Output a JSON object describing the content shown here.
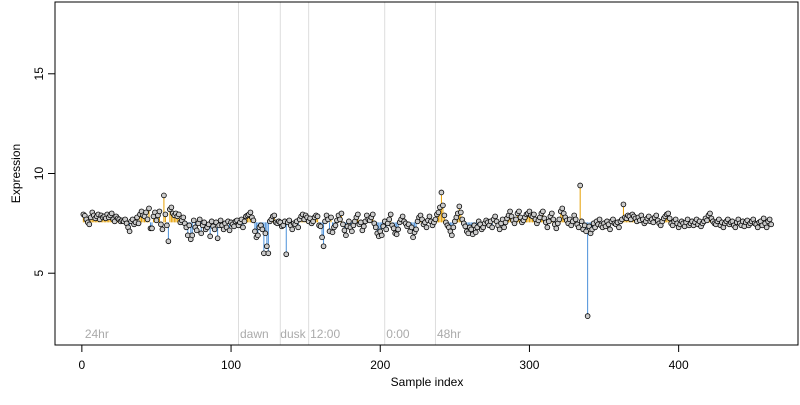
{
  "chart_data": {
    "type": "scatter",
    "title": "",
    "xlabel": "Sample index",
    "ylabel": "Expression",
    "xlim": [
      -18,
      480
    ],
    "ylim": [
      1.4,
      18.6
    ],
    "x_ticks": [
      0,
      100,
      200,
      300,
      400
    ],
    "y_ticks": [
      5,
      10,
      15
    ],
    "baseline": 7.55,
    "colors": {
      "above": "#E69F00",
      "below": "#4A90D9",
      "point_fill": "#cccccc",
      "point_edge": "#000000",
      "separator": "#dddddd",
      "phase_label": "#aaaaaa"
    },
    "phases": [
      {
        "label": "24hr",
        "x": 2,
        "boundary": null
      },
      {
        "label": "dawn",
        "x": 106,
        "boundary": 105
      },
      {
        "label": "dusk",
        "x": 133,
        "boundary": 133
      },
      {
        "label": "12:00",
        "x": 153,
        "boundary": 152
      },
      {
        "label": "0:00",
        "x": 204,
        "boundary": 203
      },
      {
        "label": "48hr",
        "x": 238,
        "boundary": 237
      }
    ],
    "series": [
      {
        "values": [
          7.95,
          7.88,
          7.7,
          7.55,
          7.45,
          7.8,
          8.05,
          7.9,
          7.75,
          7.85,
          7.95,
          7.7,
          7.9,
          7.8,
          7.85,
          7.75,
          7.95,
          7.8,
          7.9,
          8.0,
          7.7,
          7.6,
          7.85,
          7.75,
          7.7,
          7.6,
          7.65,
          7.6,
          7.7,
          7.5,
          7.3,
          7.1,
          7.6,
          7.7,
          7.45,
          7.55,
          7.8,
          7.5,
          7.95,
          8.1,
          7.9,
          7.85,
          8.05,
          7.7,
          8.25,
          7.25,
          7.25,
          7.85,
          8.05,
          7.65,
          7.9,
          8.1,
          7.45,
          7.2,
          8.9,
          7.95,
          7.4,
          6.6,
          8.2,
          8.3,
          8.0,
          7.9,
          8.0,
          7.85,
          7.95,
          7.55,
          7.65,
          7.8,
          7.5,
          7.3,
          6.9,
          7.4,
          6.7,
          6.9,
          7.65,
          7.3,
          7.15,
          7.5,
          7.7,
          7.0,
          7.4,
          7.55,
          7.2,
          7.3,
          7.45,
          6.85,
          7.6,
          7.35,
          7.2,
          7.55,
          6.75,
          7.4,
          7.65,
          7.4,
          7.2,
          7.5,
          7.3,
          7.6,
          7.15,
          7.55,
          7.45,
          7.35,
          7.6,
          7.65,
          7.4,
          7.55,
          7.7,
          7.3,
          7.6,
          7.85,
          7.9,
          7.95,
          8.05,
          7.8,
          7.65,
          7.1,
          6.8,
          6.9,
          7.3,
          7.4,
          7.2,
          6.0,
          7.0,
          6.35,
          6.0,
          7.6,
          7.7,
          7.85,
          7.9,
          7.55,
          7.5,
          7.6,
          7.55,
          7.35,
          7.4,
          7.6,
          5.95,
          7.55,
          7.65,
          7.4,
          7.2,
          7.5,
          7.45,
          7.6,
          7.3,
          7.7,
          7.85,
          7.95,
          7.7,
          7.9,
          7.8,
          7.6,
          7.75,
          7.5,
          7.6,
          7.8,
          7.9,
          7.85,
          7.4,
          7.35,
          6.8,
          6.35,
          7.6,
          7.9,
          7.7,
          7.1,
          7.8,
          7.05,
          7.3,
          7.4,
          7.65,
          7.9,
          7.7,
          8.0,
          7.45,
          7.15,
          6.9,
          7.35,
          7.6,
          7.3,
          7.1,
          7.4,
          7.6,
          7.8,
          7.95,
          7.45,
          7.55,
          7.15,
          7.35,
          7.6,
          7.9,
          7.7,
          7.65,
          7.8,
          7.95,
          7.5,
          7.3,
          7.0,
          6.85,
          7.1,
          6.9,
          7.35,
          7.6,
          7.2,
          7.5,
          7.7,
          7.95,
          7.4,
          7.25,
          7.0,
          6.95,
          7.2,
          7.55,
          7.7,
          7.85,
          7.6,
          7.5,
          7.35,
          7.45,
          7.1,
          7.3,
          6.8,
          7.05,
          7.2,
          7.6,
          7.8,
          7.9,
          7.7,
          7.45,
          7.55,
          7.3,
          7.65,
          7.85,
          7.6,
          7.4,
          7.55,
          7.7,
          7.95,
          8.05,
          8.3,
          9.05,
          8.4,
          7.9,
          7.55,
          7.4,
          7.3,
          7.1,
          6.9,
          7.3,
          7.6,
          7.8,
          8.0,
          8.35,
          8.05,
          7.7,
          7.5,
          7.35,
          7.1,
          7.0,
          7.3,
          7.2,
          6.95,
          7.4,
          7.05,
          7.3,
          7.6,
          7.45,
          7.2,
          7.3,
          7.5,
          7.65,
          7.55,
          7.4,
          7.6,
          7.3,
          7.7,
          7.85,
          7.6,
          7.4,
          7.2,
          7.5,
          7.7,
          7.3,
          7.55,
          7.75,
          7.9,
          8.1,
          7.85,
          7.65,
          7.5,
          7.7,
          8.0,
          8.1,
          7.8,
          7.55,
          7.65,
          7.8,
          7.95,
          8.0,
          8.1,
          7.9,
          7.85,
          7.95,
          7.7,
          7.5,
          7.65,
          7.8,
          8.0,
          8.1,
          7.75,
          7.55,
          7.3,
          7.6,
          7.85,
          8.0,
          7.7,
          7.45,
          7.25,
          7.5,
          7.7,
          8.1,
          8.25,
          8.0,
          7.8,
          7.65,
          7.5,
          7.7,
          7.4,
          7.6,
          7.9,
          7.7,
          7.45,
          7.3,
          9.4,
          7.6,
          7.2,
          7.4,
          7.1,
          2.85,
          7.35,
          7.0,
          7.2,
          7.5,
          7.3,
          7.6,
          7.45,
          7.7,
          7.4,
          7.3,
          7.5,
          7.35,
          7.6,
          7.45,
          7.2,
          7.6,
          7.7,
          7.5,
          7.45,
          7.55,
          7.3,
          7.6,
          7.7,
          8.45,
          7.8,
          7.75,
          7.9,
          7.85,
          7.7,
          7.95,
          7.85,
          7.75,
          7.6,
          7.8,
          7.65,
          7.9,
          7.7,
          7.5,
          7.6,
          7.75,
          7.85,
          7.6,
          7.7,
          7.55,
          7.8,
          7.9,
          7.65,
          7.5,
          7.4,
          7.6,
          7.75,
          7.85,
          7.95,
          8.0,
          7.75,
          7.5,
          7.4,
          7.6,
          7.7,
          7.5,
          7.3,
          7.45,
          7.6,
          7.5,
          7.35,
          7.55,
          7.7,
          7.4,
          7.5,
          7.6,
          7.4,
          7.55,
          7.7,
          7.45,
          7.6,
          7.35,
          7.5,
          7.6,
          7.75,
          7.65,
          7.9,
          8.0,
          7.75,
          7.6,
          7.5,
          7.45,
          7.6,
          7.7,
          7.4,
          7.55,
          7.3,
          7.5,
          7.6,
          7.7,
          7.45,
          7.55,
          7.6,
          7.4,
          7.3,
          7.55,
          7.7,
          7.5,
          7.4,
          7.6,
          7.35,
          7.55,
          7.65,
          7.4,
          7.5,
          7.6,
          7.7,
          7.5,
          7.45,
          7.3,
          7.55,
          7.6,
          7.4,
          7.75,
          7.5,
          7.3,
          7.6,
          7.7,
          7.45
        ]
      }
    ]
  }
}
